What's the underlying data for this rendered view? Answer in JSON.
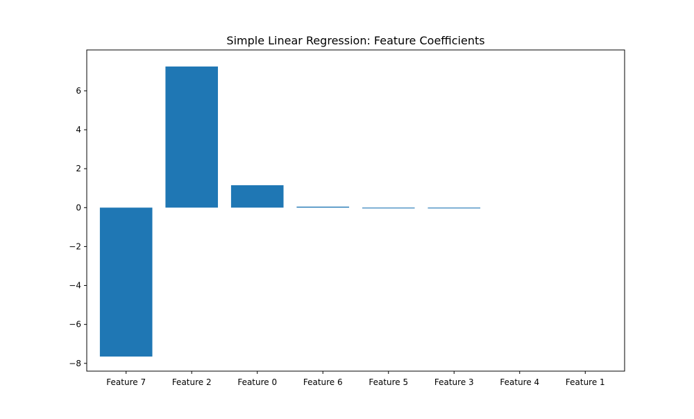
{
  "chart_data": {
    "type": "bar",
    "title": "Simple Linear Regression: Feature Coefficients",
    "xlabel": "",
    "ylabel": "",
    "categories": [
      "Feature 7",
      "Feature 2",
      "Feature 0",
      "Feature 6",
      "Feature 5",
      "Feature 3",
      "Feature 4",
      "Feature 1"
    ],
    "values": [
      -7.65,
      7.25,
      1.15,
      0.05,
      -0.04,
      -0.04,
      0.0,
      0.0
    ],
    "ylim": [
      -8.4,
      8.1
    ],
    "yticks": [
      -8,
      -6,
      -4,
      -2,
      0,
      2,
      4,
      6
    ],
    "ytick_labels": [
      "−8",
      "−6",
      "−4",
      "−2",
      "0",
      "2",
      "4",
      "6"
    ],
    "bar_color": "#1f77b4",
    "grid": false,
    "legend": "none"
  }
}
